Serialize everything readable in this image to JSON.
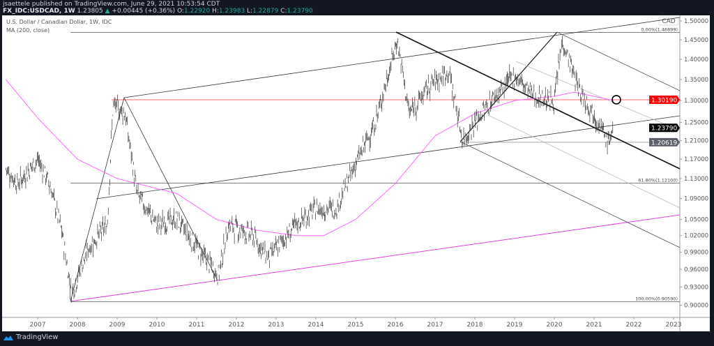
{
  "header": {
    "publisher_line": "jsaettele published on TradingView.com, June 29, 2021 10:53:54 CDT",
    "symbol": "FX_IDC:USDCAD, 1W",
    "last": "1.23805",
    "change": "+0.00445 (+0.36%)",
    "open_label": "O:",
    "open": "1.22920",
    "high_label": "H:",
    "high": "1.23983",
    "low_label": "L:",
    "low": "1.22879",
    "close_label": "C:",
    "close": "1.23790"
  },
  "legend": {
    "title": "U.S. Dollar / Canadian Dollar, 1W, IDC",
    "indicator": "MA (200, close)"
  },
  "currency_badge": "CAD",
  "footer": {
    "brand": "TradingView"
  },
  "colors": {
    "ma": "#ff66ff",
    "resistance": "#ff0000",
    "up": "#26a69a",
    "background_dark": "#131722"
  },
  "chart_data": {
    "type": "line",
    "scale": "log",
    "ylim": [
      0.88,
      1.51
    ],
    "xlim": [
      2006.2,
      2023.2
    ],
    "grid": false,
    "x_ticks": [
      "2007",
      "2008",
      "2009",
      "2010",
      "2011",
      "2012",
      "2013",
      "2014",
      "2015",
      "2016",
      "2017",
      "2018",
      "2019",
      "2020",
      "2021",
      "2022",
      "2023"
    ],
    "y_ticks": [
      "1.50000",
      "1.45000",
      "1.40000",
      "1.35000",
      "1.30000",
      "1.25000",
      "1.21000",
      "1.17000",
      "1.13000",
      "1.09000",
      "1.05000",
      "1.02000",
      "0.99000",
      "0.96000",
      "0.93000",
      "0.90000"
    ],
    "price_labels": [
      {
        "value": "1.30190",
        "color": "#ff0000"
      },
      {
        "value": "1.23790",
        "color": "#000000"
      },
      {
        "value": "1.20619",
        "color": "#5d606b"
      }
    ],
    "fib_labels": [
      {
        "text": "0.00%(1.46899)",
        "value": 1.46899
      },
      {
        "text": "61.80%(1.12100)",
        "value": 1.121
      },
      {
        "text": "100.00%(0.90590)",
        "value": 0.9059
      }
    ],
    "series": [
      {
        "name": "USDCAD",
        "x": [
          2006.2,
          2006.5,
          2007.0,
          2007.3,
          2007.6,
          2007.85,
          2008.3,
          2008.75,
          2008.9,
          2009.2,
          2009.5,
          2010.0,
          2010.5,
          2011.0,
          2011.55,
          2011.8,
          2012.4,
          2012.8,
          2013.5,
          2014.0,
          2014.5,
          2015.0,
          2015.5,
          2016.05,
          2016.35,
          2016.9,
          2017.35,
          2017.7,
          2018.0,
          2018.5,
          2019.0,
          2019.5,
          2020.0,
          2020.2,
          2020.6,
          2021.0,
          2021.35,
          2021.48
        ],
        "y": [
          1.15,
          1.12,
          1.17,
          1.12,
          1.03,
          0.92,
          1.0,
          1.04,
          1.29,
          1.27,
          1.1,
          1.04,
          1.05,
          1.0,
          0.95,
          1.04,
          1.02,
          0.98,
          1.04,
          1.07,
          1.07,
          1.16,
          1.25,
          1.45,
          1.27,
          1.34,
          1.37,
          1.21,
          1.25,
          1.31,
          1.36,
          1.31,
          1.3,
          1.45,
          1.33,
          1.27,
          1.205,
          1.238
        ]
      },
      {
        "name": "MA (200, close)",
        "x": [
          2006.2,
          2007.0,
          2008.0,
          2009.0,
          2009.5,
          2010.5,
          2011.5,
          2012.5,
          2013.5,
          2014.2,
          2015.0,
          2016.0,
          2017.0,
          2018.0,
          2019.0,
          2020.0,
          2020.5,
          2021.5
        ],
        "y": [
          1.35,
          1.26,
          1.17,
          1.13,
          1.12,
          1.1,
          1.05,
          1.03,
          1.02,
          1.02,
          1.05,
          1.12,
          1.22,
          1.27,
          1.3,
          1.31,
          1.32,
          1.3
        ]
      }
    ]
  }
}
